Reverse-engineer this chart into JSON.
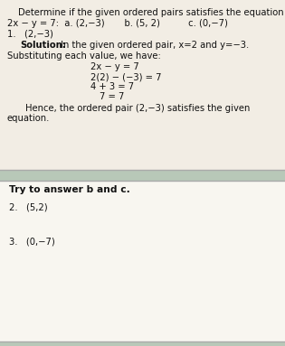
{
  "bg_color": "#b8c8b8",
  "top_section_color": "#f2ede4",
  "bottom_section_color": "#f8f6f0",
  "border_color": "#888888",
  "text_color": "#111111",
  "title_line": "Determine if the given ordered pairs satisfies the equation",
  "equation_line": "2x − y = 7:  a. (2,−3)       b. (5, 2)          c. (0,−7)",
  "item1_label": "1.   (2,−3)",
  "solution_bold": "Solution:",
  "solution_text": " In the given ordered pair, x=2 and y=−3.",
  "subst_text": "Substituting each value, we have:",
  "eq1": "2x − y = 7",
  "eq2": "2(2) − (−3) = 7",
  "eq3": "4 + 3 = 7",
  "eq4": "7 = 7",
  "hence_text": "Hence, the ordered pair (2,−3) satisfies the given",
  "equation_end": "equation.",
  "try_bold": "Try to answer b and c.",
  "item2": "2.   (5,2)",
  "item3": "3.   (0,−7)",
  "fs": 7.2
}
